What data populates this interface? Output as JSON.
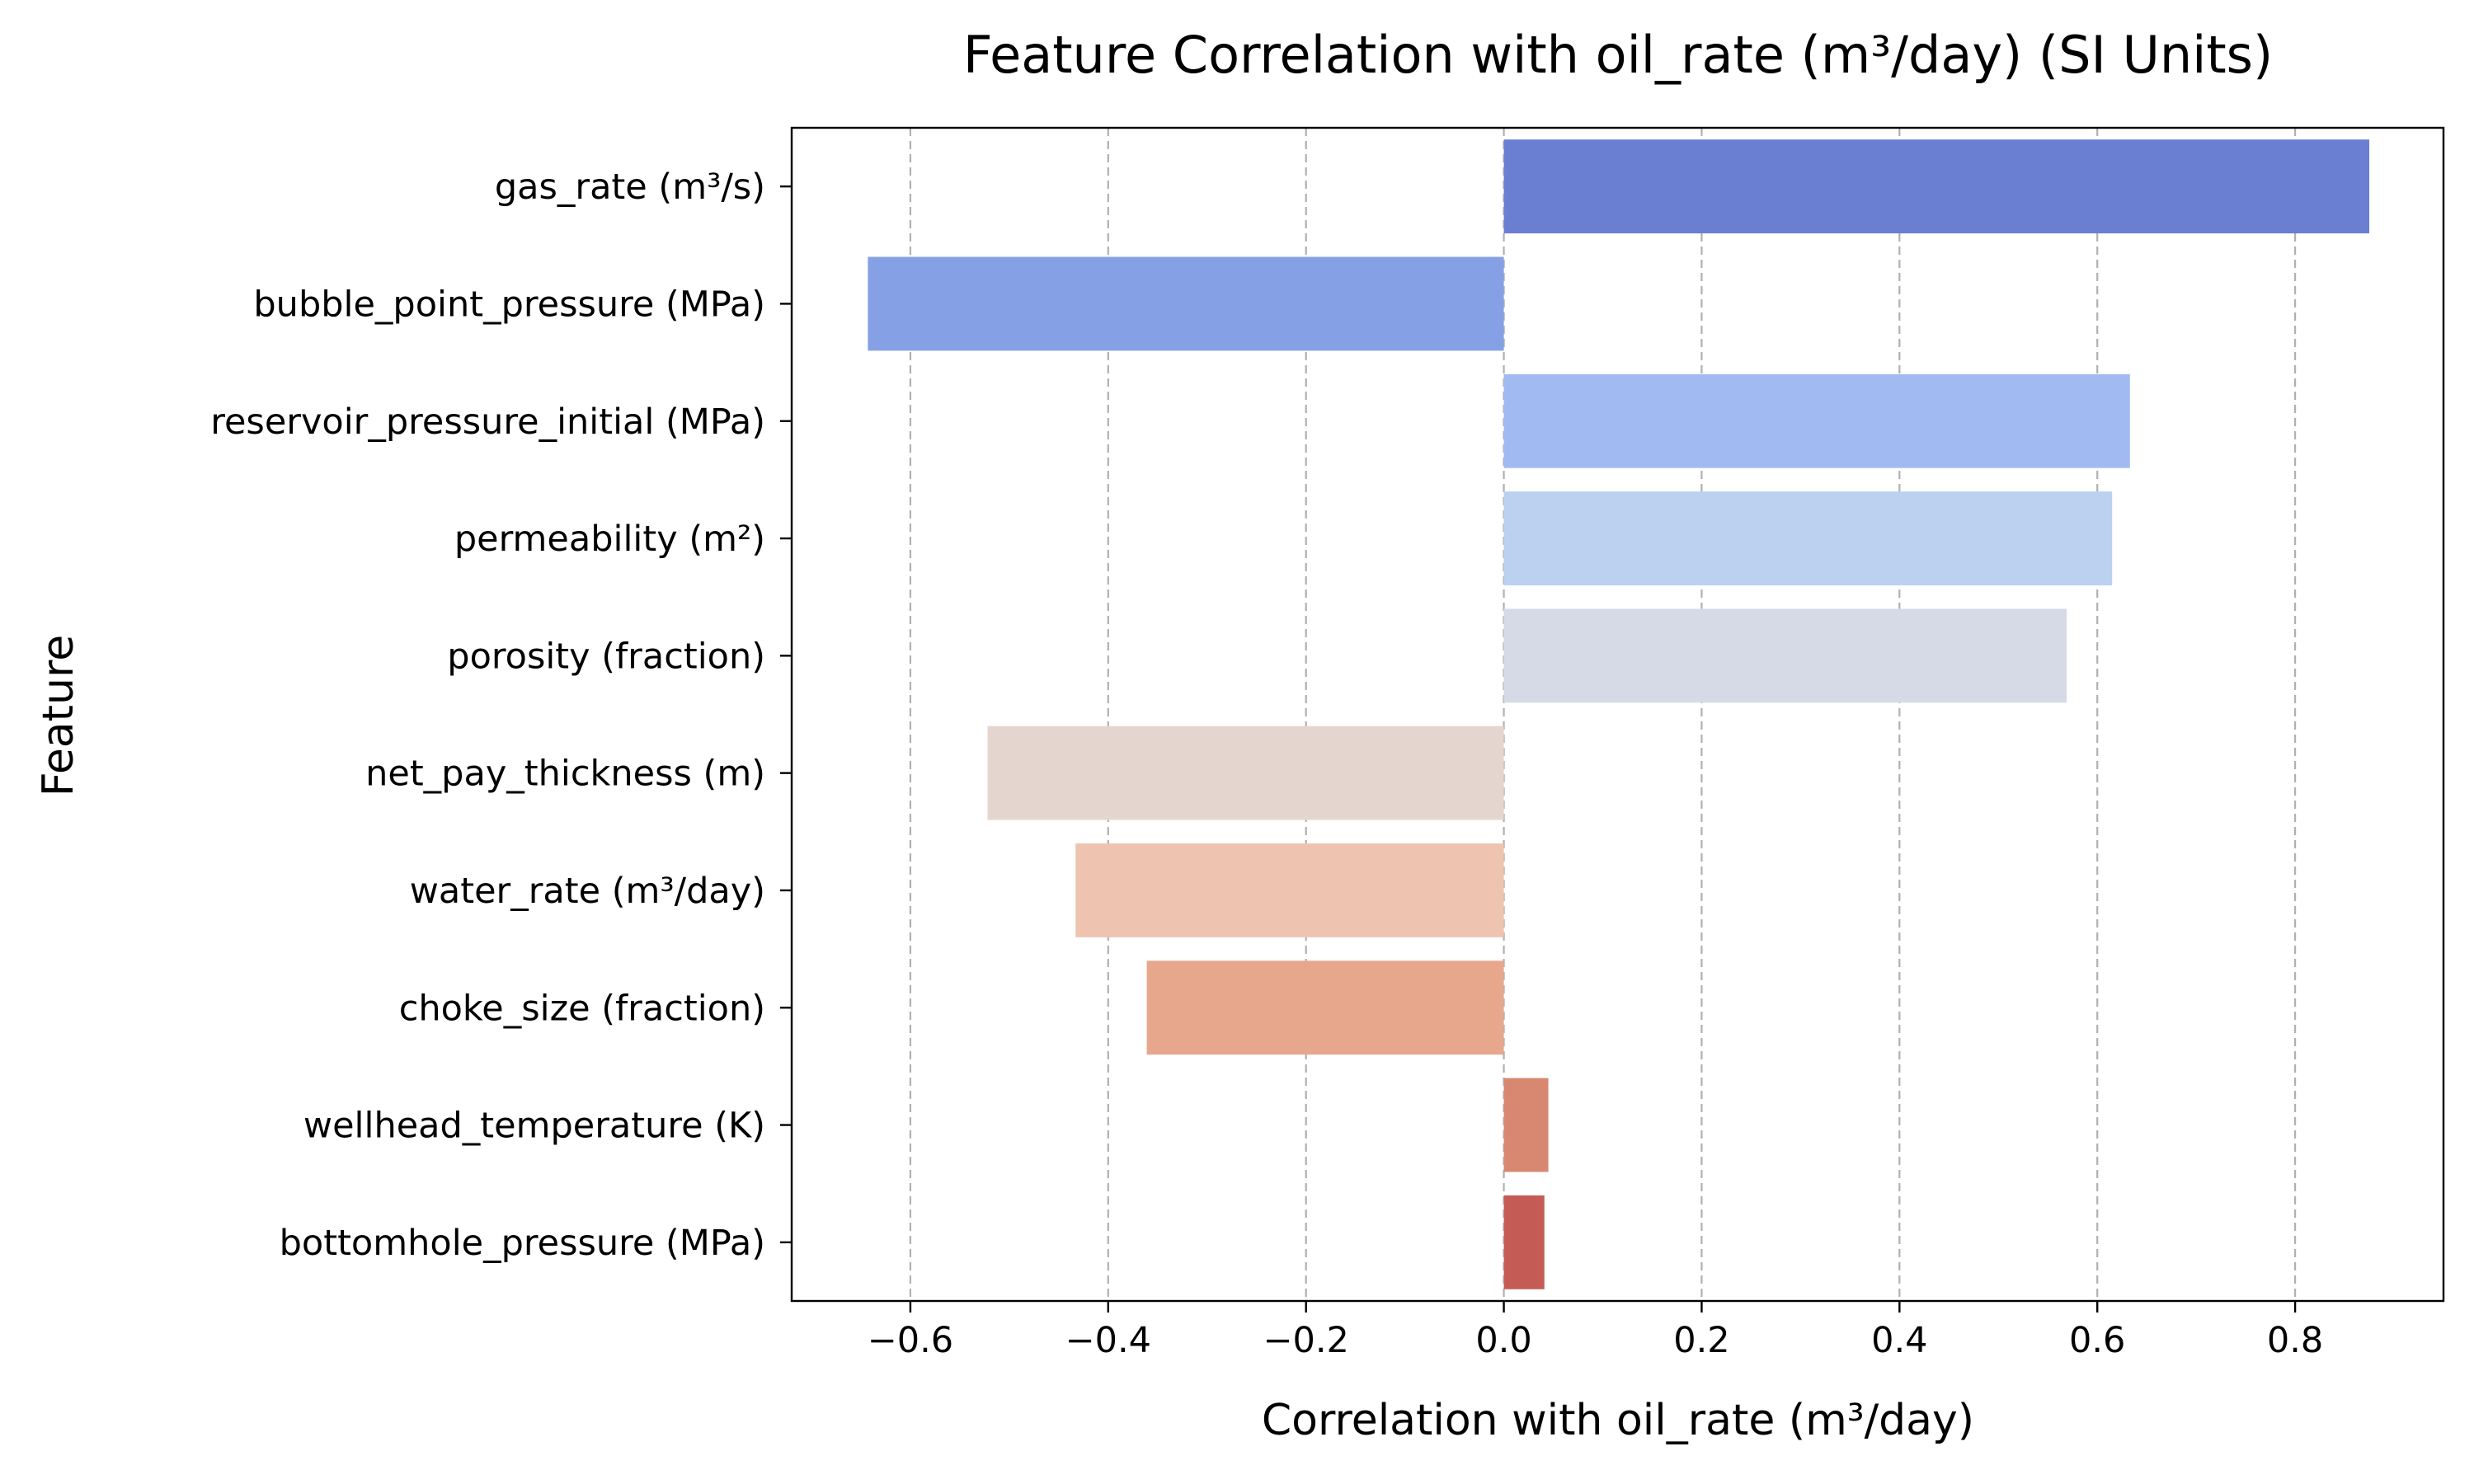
{
  "chart_data": {
    "type": "bar",
    "orientation": "horizontal",
    "title": "Feature Correlation with oil_rate (m³/day) (SI Units)",
    "xlabel": "Correlation with oil_rate (m³/day)",
    "ylabel": "Feature",
    "xlim": [
      -0.72,
      0.95
    ],
    "xticks": [
      -0.6,
      -0.4,
      -0.2,
      0.0,
      0.2,
      0.4,
      0.6,
      0.8
    ],
    "xtick_labels": [
      "−0.6",
      "−0.4",
      "−0.2",
      "0.0",
      "0.2",
      "0.4",
      "0.6",
      "0.8"
    ],
    "grid": "x-axis dashed",
    "categories": [
      "gas_rate (m³/s)",
      "bubble_point_pressure (MPa)",
      "reservoir_pressure_initial (MPa)",
      "permeability (m²)",
      "porosity (fraction)",
      "net_pay_thickness (m)",
      "water_rate (m³/day)",
      "choke_size (fraction)",
      "wellhead_temperature (K)",
      "bottomhole_pressure (MPa)"
    ],
    "values": [
      0.875,
      -0.643,
      0.633,
      0.615,
      0.569,
      -0.522,
      -0.433,
      -0.361,
      0.045,
      0.041
    ],
    "colors": [
      "#6a7fd1",
      "#86a0e5",
      "#a1bbf2",
      "#bcd0f0",
      "#d5dae6",
      "#e4d6cf",
      "#eec4b0",
      "#e6a78d",
      "#d88871",
      "#c45c55"
    ]
  }
}
